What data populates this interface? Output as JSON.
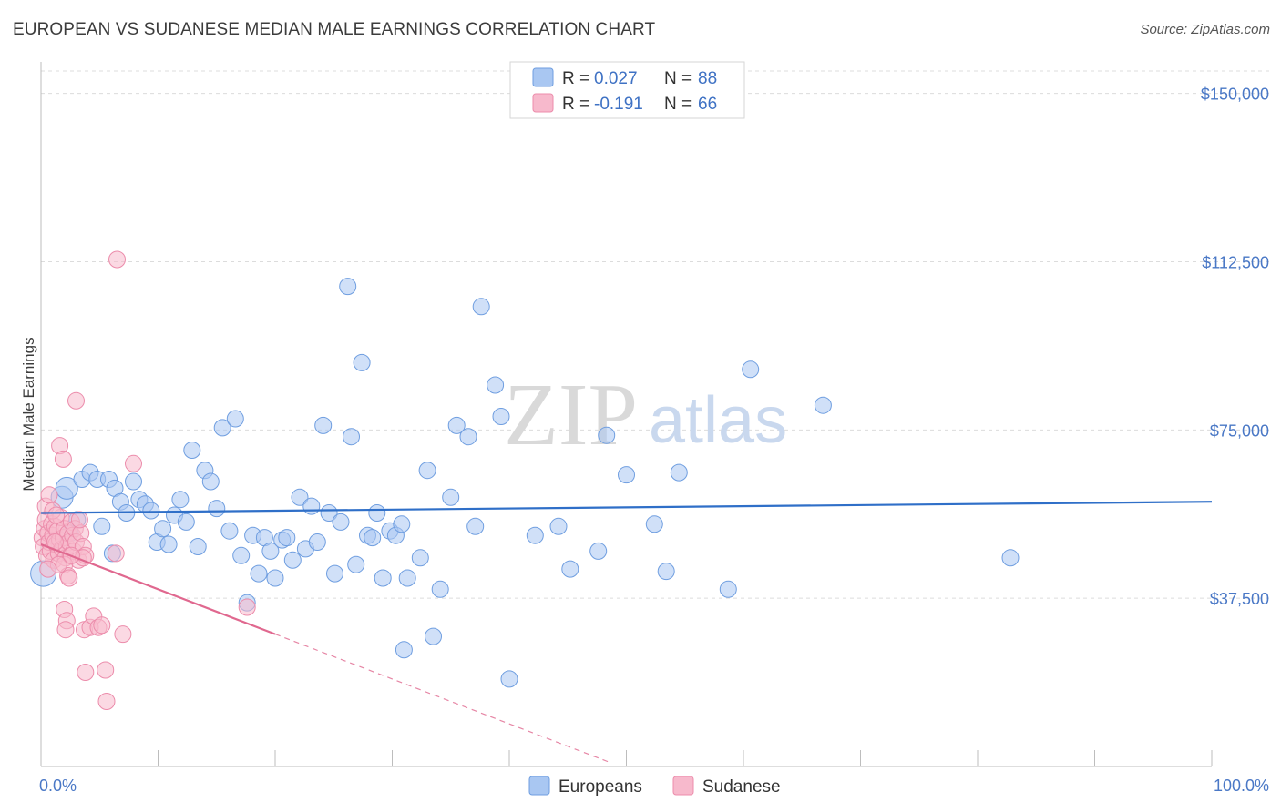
{
  "title": "EUROPEAN VS SUDANESE MEDIAN MALE EARNINGS CORRELATION CHART",
  "source": "Source: ZipAtlas.com",
  "watermark": {
    "zip": "ZIP",
    "atlas": "atlas"
  },
  "legend": {
    "rows": [
      {
        "r_label": "R =",
        "r_value": "0.027",
        "n_label": "N =",
        "n_value": "88",
        "color": "#a9c7f2",
        "stroke": "#6f9ee0"
      },
      {
        "r_label": "R =",
        "r_value": "-0.191",
        "n_label": "N =",
        "n_value": "66",
        "color": "#f7b9cc",
        "stroke": "#ec8cab"
      }
    ]
  },
  "bottom_legend": [
    {
      "label": "Europeans",
      "color": "#a9c7f2",
      "stroke": "#6f9ee0"
    },
    {
      "label": "Sudanese",
      "color": "#f7b9cc",
      "stroke": "#ec8cab"
    }
  ],
  "chart_data": {
    "type": "scatter",
    "title": "EUROPEAN VS SUDANESE MEDIAN MALE EARNINGS CORRELATION CHART",
    "xlabel": "",
    "ylabel": "Median Male Earnings",
    "xlim": [
      0,
      100
    ],
    "ylim": [
      0,
      155000
    ],
    "x_tick_labels": [
      "0.0%",
      "100.0%"
    ],
    "y_ticks": [
      37500,
      75000,
      112500,
      150000
    ],
    "y_tick_labels": [
      "$37,500",
      "$75,000",
      "$112,500",
      "$150,000"
    ],
    "grid": true,
    "series": [
      {
        "name": "Europeans",
        "color": "#6f9ee0",
        "fill": "#a9c7f2",
        "trend": {
          "x": [
            0,
            100
          ],
          "y": [
            56500,
            59000
          ],
          "color": "#2f6fc8"
        },
        "points": [
          [
            0.2,
            43000
          ],
          [
            1.8,
            60000
          ],
          [
            2.2,
            62000
          ],
          [
            3.5,
            64000
          ],
          [
            4.2,
            65500
          ],
          [
            4.8,
            64000
          ],
          [
            5.8,
            64000
          ],
          [
            6.3,
            62000
          ],
          [
            6.8,
            59000
          ],
          [
            7.3,
            56500
          ],
          [
            7.9,
            63500
          ],
          [
            8.4,
            59500
          ],
          [
            8.9,
            58500
          ],
          [
            9.4,
            57000
          ],
          [
            9.9,
            50000
          ],
          [
            10.4,
            53000
          ],
          [
            10.9,
            49500
          ],
          [
            11.4,
            56000
          ],
          [
            11.9,
            59500
          ],
          [
            12.4,
            54500
          ],
          [
            12.9,
            70500
          ],
          [
            13.4,
            49000
          ],
          [
            14.0,
            66000
          ],
          [
            14.5,
            63500
          ],
          [
            15.0,
            57500
          ],
          [
            15.5,
            75500
          ],
          [
            16.1,
            52500
          ],
          [
            16.6,
            77500
          ],
          [
            17.1,
            47000
          ],
          [
            17.6,
            36500
          ],
          [
            18.1,
            51500
          ],
          [
            18.6,
            43000
          ],
          [
            19.1,
            51000
          ],
          [
            19.6,
            48000
          ],
          [
            20.0,
            42000
          ],
          [
            20.6,
            50500
          ],
          [
            21.0,
            51000
          ],
          [
            21.5,
            46000
          ],
          [
            22.1,
            60000
          ],
          [
            22.6,
            48500
          ],
          [
            23.1,
            58000
          ],
          [
            23.6,
            50000
          ],
          [
            24.1,
            76000
          ],
          [
            24.6,
            56500
          ],
          [
            25.1,
            43000
          ],
          [
            25.6,
            54500
          ],
          [
            26.2,
            107000
          ],
          [
            26.5,
            73500
          ],
          [
            26.9,
            45000
          ],
          [
            27.4,
            90000
          ],
          [
            27.9,
            51500
          ],
          [
            28.3,
            51000
          ],
          [
            28.7,
            56500
          ],
          [
            29.2,
            42000
          ],
          [
            29.8,
            52500
          ],
          [
            30.3,
            51500
          ],
          [
            30.8,
            54000
          ],
          [
            31.3,
            42000
          ],
          [
            32.4,
            46500
          ],
          [
            33.0,
            66000
          ],
          [
            33.5,
            29000
          ],
          [
            34.1,
            39500
          ],
          [
            35.0,
            60000
          ],
          [
            35.5,
            76000
          ],
          [
            36.5,
            73500
          ],
          [
            37.1,
            53500
          ],
          [
            31.0,
            26000
          ],
          [
            38.8,
            85000
          ],
          [
            39.3,
            78000
          ],
          [
            40.0,
            19500
          ],
          [
            42.2,
            51500
          ],
          [
            44.2,
            53500
          ],
          [
            45.2,
            44000
          ],
          [
            47.6,
            48000
          ],
          [
            48.3,
            73800
          ],
          [
            50.0,
            65000
          ],
          [
            52.4,
            54000
          ],
          [
            53.4,
            43500
          ],
          [
            54.5,
            65500
          ],
          [
            58.7,
            39500
          ],
          [
            60.6,
            88500
          ],
          [
            66.8,
            80500
          ],
          [
            82.8,
            46500
          ],
          [
            37.6,
            102500
          ],
          [
            2.5,
            52000
          ],
          [
            3.1,
            55000
          ],
          [
            5.2,
            53500
          ],
          [
            6.1,
            47500
          ]
        ]
      },
      {
        "name": "Sudanese",
        "color": "#ec8cab",
        "fill": "#f7b9cc",
        "trend": {
          "x": [
            0,
            20
          ],
          "y": [
            49500,
            29500
          ],
          "color": "#e0688f"
        },
        "trend_extension": {
          "x": [
            20,
            48.5
          ],
          "y": [
            29500,
            1000
          ]
        },
        "points": [
          [
            0.1,
            51000
          ],
          [
            0.2,
            49000
          ],
          [
            0.3,
            53000
          ],
          [
            0.4,
            55000
          ],
          [
            0.5,
            47000
          ],
          [
            0.6,
            52000
          ],
          [
            0.7,
            50000
          ],
          [
            0.8,
            48000
          ],
          [
            0.9,
            54000
          ],
          [
            1.0,
            51500
          ],
          [
            1.1,
            46000
          ],
          [
            1.2,
            53500
          ],
          [
            1.3,
            49500
          ],
          [
            1.4,
            52500
          ],
          [
            1.5,
            47500
          ],
          [
            1.6,
            50500
          ],
          [
            1.7,
            55500
          ],
          [
            1.8,
            48500
          ],
          [
            1.9,
            51000
          ],
          [
            2.0,
            53000
          ],
          [
            2.1,
            46500
          ],
          [
            2.2,
            49000
          ],
          [
            2.3,
            52000
          ],
          [
            2.4,
            50000
          ],
          [
            2.5,
            47000
          ],
          [
            2.6,
            54500
          ],
          [
            2.7,
            51500
          ],
          [
            2.8,
            48000
          ],
          [
            2.9,
            53000
          ],
          [
            3.0,
            50000
          ],
          [
            3.2,
            46000
          ],
          [
            3.4,
            52000
          ],
          [
            3.6,
            49000
          ],
          [
            3.8,
            47000
          ],
          [
            0.4,
            58000
          ],
          [
            0.7,
            60500
          ],
          [
            1.0,
            57000
          ],
          [
            1.3,
            56000
          ],
          [
            1.6,
            71500
          ],
          [
            1.9,
            68500
          ],
          [
            2.0,
            45000
          ],
          [
            2.3,
            42500
          ],
          [
            2.4,
            42000
          ],
          [
            2.0,
            35000
          ],
          [
            2.2,
            32500
          ],
          [
            2.1,
            30500
          ],
          [
            3.0,
            81500
          ],
          [
            3.3,
            55000
          ],
          [
            3.6,
            46500
          ],
          [
            3.7,
            30500
          ],
          [
            3.8,
            21000
          ],
          [
            4.2,
            31000
          ],
          [
            4.5,
            33500
          ],
          [
            4.9,
            31000
          ],
          [
            5.2,
            31500
          ],
          [
            5.5,
            21500
          ],
          [
            5.6,
            14500
          ],
          [
            6.4,
            47500
          ],
          [
            6.5,
            113000
          ],
          [
            7.0,
            29500
          ],
          [
            7.9,
            67500
          ],
          [
            17.6,
            35500
          ],
          [
            1.5,
            45000
          ],
          [
            2.6,
            47000
          ],
          [
            0.6,
            44000
          ],
          [
            1.2,
            50000
          ]
        ]
      }
    ]
  }
}
